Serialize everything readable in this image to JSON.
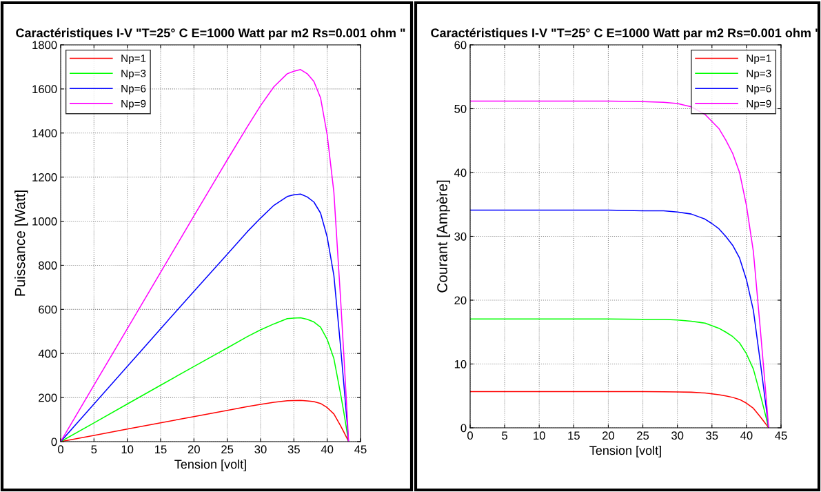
{
  "chart_data": [
    {
      "type": "line",
      "title": "Caractéristiques I-V \"T=25° C E=1000 Watt par m2 Rs=0.001 ohm \"",
      "xlabel": "Tension [volt]",
      "ylabel": "Puissance [Watt]",
      "x": [
        0,
        5,
        10,
        15,
        20,
        25,
        28,
        30,
        32,
        34,
        35,
        36,
        37,
        38,
        39,
        40,
        41,
        42,
        42.5,
        43,
        43.2
      ],
      "series": [
        {
          "name": "Np=1",
          "color": "#ff0000",
          "values": [
            0,
            28.4,
            56.8,
            85.2,
            113.6,
            141.8,
            158.5,
            168.9,
            178.6,
            185.3,
            186.6,
            187.2,
            185,
            181.3,
            173.2,
            154.4,
            125.5,
            72.2,
            43.4,
            13.3,
            0
          ]
        },
        {
          "name": "Np=3",
          "color": "#00ff00",
          "values": [
            0,
            85,
            170.5,
            256,
            341,
            425,
            476,
            507,
            534,
            558,
            560,
            562,
            555,
            543,
            519,
            464,
            377,
            218,
            132,
            39,
            0
          ]
        },
        {
          "name": "Np=6",
          "color": "#0000ff",
          "values": [
            0,
            170.5,
            341,
            511.5,
            682,
            850,
            952,
            1014,
            1072,
            1112,
            1120,
            1123,
            1110,
            1087,
            1037,
            928,
            754,
            433,
            259,
            82,
            0
          ]
        },
        {
          "name": "Np=9",
          "color": "#ff00ff",
          "values": [
            0,
            256,
            512,
            768,
            1024,
            1278,
            1428,
            1524,
            1610,
            1669,
            1680,
            1688,
            1669,
            1634,
            1560,
            1392,
            1132,
            651,
            391,
            120,
            0
          ]
        }
      ],
      "xlim": [
        0,
        45
      ],
      "xticks": [
        0,
        5,
        10,
        15,
        20,
        25,
        30,
        35,
        40,
        45
      ],
      "ylim": [
        0,
        1800
      ],
      "yticks": [
        0,
        200,
        400,
        600,
        800,
        1000,
        1200,
        1400,
        1600,
        1800
      ],
      "grid": true,
      "legend": "top left",
      "marker": "none",
      "line_style": "solid"
    },
    {
      "type": "line",
      "title": "Caractéristiques I-V \"T=25° C E=1000 Watt par m2 Rs=0.001 ohm \"",
      "xlabel": "Tension [volt]",
      "ylabel": "Courant [Ampère]",
      "x": [
        0,
        5,
        10,
        15,
        20,
        25,
        28,
        30,
        32,
        34,
        35,
        36,
        37,
        38,
        39,
        40,
        41,
        42,
        42.5,
        43,
        43.2
      ],
      "series": [
        {
          "name": "Np=1",
          "color": "#ff0000",
          "values": [
            5.68,
            5.68,
            5.68,
            5.68,
            5.68,
            5.67,
            5.66,
            5.63,
            5.58,
            5.45,
            5.33,
            5.2,
            5.0,
            4.77,
            4.44,
            3.86,
            3.06,
            1.72,
            1.02,
            0.31,
            0
          ]
        },
        {
          "name": "Np=3",
          "color": "#00ff00",
          "values": [
            17.05,
            17.05,
            17.05,
            17.05,
            17.05,
            17.0,
            17.0,
            16.9,
            16.7,
            16.4,
            16.0,
            15.6,
            15.0,
            14.3,
            13.3,
            11.6,
            9.2,
            5.2,
            3.1,
            0.9,
            0
          ]
        },
        {
          "name": "Np=6",
          "color": "#0000ff",
          "values": [
            34.1,
            34.1,
            34.1,
            34.1,
            34.1,
            34.0,
            34.0,
            33.8,
            33.5,
            32.7,
            32.0,
            31.2,
            30.0,
            28.6,
            26.6,
            23.2,
            18.4,
            10.3,
            6.1,
            1.9,
            0
          ]
        },
        {
          "name": "Np=9",
          "color": "#ff00ff",
          "values": [
            51.2,
            51.2,
            51.2,
            51.2,
            51.2,
            51.1,
            51.0,
            50.8,
            50.3,
            49.1,
            48.0,
            46.9,
            45.1,
            43.0,
            40.0,
            34.8,
            27.6,
            15.5,
            9.2,
            2.8,
            0
          ]
        }
      ],
      "xlim": [
        0,
        45
      ],
      "xticks": [
        0,
        5,
        10,
        15,
        20,
        25,
        30,
        35,
        40,
        45
      ],
      "ylim": [
        0,
        60
      ],
      "yticks": [
        0,
        10,
        20,
        30,
        40,
        50,
        60
      ],
      "grid": true,
      "legend": "top right",
      "marker": "none",
      "line_style": "solid"
    }
  ]
}
